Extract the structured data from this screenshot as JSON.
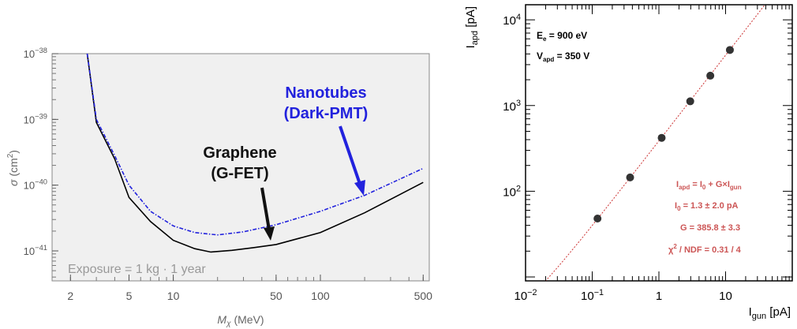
{
  "chart_data": [
    {
      "type": "line",
      "xscale": "log",
      "yscale": "log",
      "xlim": [
        1.5,
        550
      ],
      "ylim": [
        3.5e-42,
        1e-38
      ],
      "xlabel": "M",
      "xlabel_sub": "χ",
      "xlabel_unit": "(MeV)",
      "ylabel": "σ",
      "ylabel_unit_open": "(cm",
      "ylabel_unit_sup": "2",
      "ylabel_unit_close": ")",
      "x_ticks": [
        {
          "value": 2,
          "label": "2"
        },
        {
          "value": 5,
          "label": "5"
        },
        {
          "value": 10,
          "label": "10"
        },
        {
          "value": 50,
          "label": "50"
        },
        {
          "value": 100,
          "label": "100"
        },
        {
          "value": 500,
          "label": "500"
        }
      ],
      "y_ticks": [
        {
          "value": 1e-38,
          "base": "10",
          "exp": "−38"
        },
        {
          "value": 1e-39,
          "base": "10",
          "exp": "−39"
        },
        {
          "value": 1e-40,
          "base": "10",
          "exp": "−40"
        },
        {
          "value": 1e-41,
          "base": "10",
          "exp": "−41"
        }
      ],
      "background": "#f0f0f0",
      "series": [
        {
          "name": "Graphene (G-FET)",
          "color": "#000000",
          "dashed": false,
          "points": [
            [
              2.6,
              1e-38
            ],
            [
              3.0,
              9e-40
            ],
            [
              4.0,
              2.5e-40
            ],
            [
              5.0,
              6.5e-41
            ],
            [
              7.0,
              2.8e-41
            ],
            [
              10.0,
              1.45e-41
            ],
            [
              14.0,
              1.08e-41
            ],
            [
              18.0,
              9.6e-42
            ],
            [
              25.0,
              1.02e-41
            ],
            [
              35.0,
              1.12e-41
            ],
            [
              50.0,
              1.25e-41
            ],
            [
              100.0,
              1.9e-41
            ],
            [
              200.0,
              3.8e-41
            ],
            [
              500.0,
              1.1e-40
            ]
          ]
        },
        {
          "name": "Nanotubes (Dark-PMT)",
          "color": "#2222dd",
          "dashed": true,
          "points": [
            [
              2.6,
              1e-38
            ],
            [
              3.0,
              1e-39
            ],
            [
              4.0,
              2.8e-40
            ],
            [
              5.0,
              1e-40
            ],
            [
              7.0,
              4e-41
            ],
            [
              10.0,
              2.4e-41
            ],
            [
              14.0,
              1.9e-41
            ],
            [
              20.0,
              1.75e-41
            ],
            [
              30.0,
              1.95e-41
            ],
            [
              50.0,
              2.5e-41
            ],
            [
              100.0,
              4e-41
            ],
            [
              200.0,
              7e-41
            ],
            [
              500.0,
              1.8e-40
            ]
          ]
        }
      ],
      "annotations": {
        "graphene_line1": "Graphene",
        "graphene_line2": "(G-FET)",
        "nanotubes_line1": "Nanotubes",
        "nanotubes_line2": "(Dark-PMT)",
        "exposure": "Exposure = 1 kg · 1 year"
      }
    },
    {
      "type": "scatter",
      "xscale": "log",
      "yscale": "log",
      "xlim": [
        0.01,
        100
      ],
      "ylim": [
        9,
        15000
      ],
      "xlabel": "I",
      "xlabel_sub": "gun",
      "xlabel_unit": " [pA]",
      "ylabel": "I",
      "ylabel_sub": "apd",
      "ylabel_unit": " [pA]",
      "x_ticks": [
        {
          "value": 0.01,
          "base": "10",
          "exp": "−2"
        },
        {
          "value": 0.1,
          "base": "10",
          "exp": "−1"
        },
        {
          "value": 1,
          "label": "1"
        },
        {
          "value": 10,
          "label": "10"
        }
      ],
      "y_ticks": [
        {
          "value": 100,
          "base": "10",
          "exp": "2"
        },
        {
          "value": 1000,
          "base": "10",
          "exp": "3"
        },
        {
          "value": 10000,
          "base": "10",
          "exp": "4"
        }
      ],
      "points": [
        [
          0.12,
          48
        ],
        [
          0.37,
          145
        ],
        [
          1.1,
          420
        ],
        [
          2.95,
          1120
        ],
        [
          5.9,
          2230
        ],
        [
          11.6,
          4450
        ]
      ],
      "fit": {
        "intercept": 1.3,
        "slope": 385.8,
        "color": "#cc3333",
        "dashed": true
      },
      "text_conditions": [
        {
          "main": "E",
          "sub": "e",
          "rest": " = 900 eV"
        },
        {
          "main": "V",
          "sub": "apd",
          "rest": " = 350 V"
        }
      ],
      "fit_text": {
        "line1": {
          "a": "I",
          "a_sub": "apd",
          "b": " = I",
          "b_sub": "0",
          "c": " + G×I",
          "c_sub": "gun"
        },
        "line2": {
          "a": "I",
          "a_sub": "0",
          "b": " = 1.3  ± 2.0 pA"
        },
        "line3": "G = 385.8  ± 3.3",
        "line4": {
          "a": "χ",
          "a_sup": "2",
          "b": " / NDF = 0.31 / 4"
        }
      },
      "text_color": "#cc5555"
    }
  ]
}
